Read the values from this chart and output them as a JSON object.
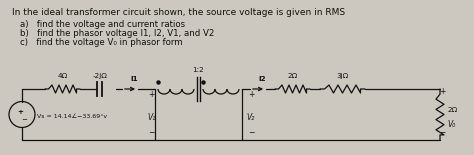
{
  "title": "In the ideal transformer circuit shown, the source voltage is given in RMS",
  "items": [
    "a)   find the voltage and current ratios",
    "b)   find the phasor voltage I1, I2, V1, and V2",
    "c)   find the voltage V₀ in phasor form"
  ],
  "bg_color": "#ccc8c0",
  "text_color": "#111111",
  "title_fontsize": 6.5,
  "item_fontsize": 6.2,
  "circuit": {
    "R1_label": "4Ω",
    "R2_label": "-2jΩ",
    "I1_label": "I1",
    "I2_label": "I2",
    "R3_label": "2Ω",
    "R4_label": "3jΩ",
    "R5_label": "2Ω",
    "ratio_label": "1:2",
    "Vs_label": "Vs = 14.14∠−33.69°v",
    "V1_label": "V₁",
    "V2_label": "V₂",
    "Vo_label": "V₀"
  }
}
